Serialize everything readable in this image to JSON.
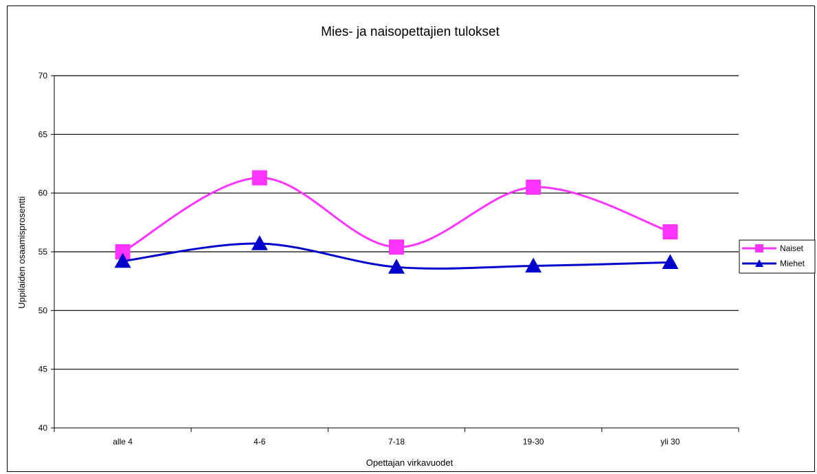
{
  "chart_data": {
    "type": "line",
    "title": "Mies- ja naisopettajien tulokset",
    "xlabel": "Opettajan virkavuodet",
    "ylabel": "Uppilaiden osaamisprosentti",
    "categories": [
      "alle 4",
      "4-6",
      "7-18",
      "19-30",
      "yli 30"
    ],
    "ylim": [
      40,
      70
    ],
    "yticks": [
      40,
      45,
      50,
      55,
      60,
      65,
      70
    ],
    "grid": true,
    "legend_position": "right",
    "series": [
      {
        "name": "Naiset",
        "values": [
          55.0,
          61.3,
          55.4,
          60.5,
          56.7
        ],
        "color": "#ff33ff",
        "marker": "square"
      },
      {
        "name": "Miehet",
        "values": [
          54.2,
          55.7,
          53.7,
          53.8,
          54.1
        ],
        "color": "#0000cc",
        "marker": "triangle"
      }
    ]
  }
}
